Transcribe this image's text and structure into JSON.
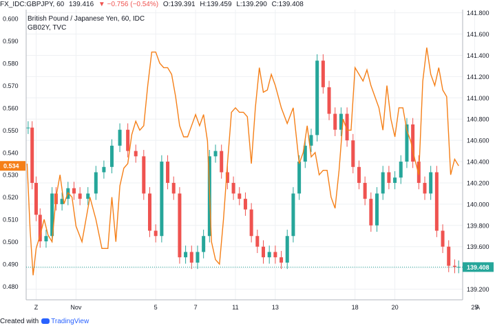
{
  "header": {
    "symbol": "FX_IDC:GBPJPY, 60",
    "last": "139.416",
    "change": "▼ −0.756 (−0.54%)",
    "open": "O:139.391",
    "high": "H:139.459",
    "low": "L:139.290",
    "close": "C:139.408"
  },
  "footer": {
    "created_with": "Created with",
    "brand": "TradingView"
  },
  "colors": {
    "up": "#26a69a",
    "down": "#ef5350",
    "yield_line": "#f57f17",
    "grid": "#eef0f3",
    "axis_text": "#131722",
    "price_badge": "#26a69a"
  },
  "chart_data": {
    "type": "candlestick",
    "title": "British Pound / Japanese Yen, 60, IDC",
    "subtitle": "GB02Y, TVC",
    "x_ticks": [
      "Z",
      "Nov",
      "5",
      "7",
      "11",
      "13",
      "18",
      "20",
      "25"
    ],
    "x_tick_days": [
      -2,
      0,
      4,
      6,
      8,
      10,
      14,
      16,
      20
    ],
    "x_range_days": [
      -2.5,
      19.4
    ],
    "corner_label": "A",
    "left_axis": {
      "ylim": [
        0.474,
        0.604
      ],
      "ticks": [
        "0.600",
        "0.590",
        "0.580",
        "0.570",
        "0.560",
        "0.550",
        "0.540",
        "0.530",
        "0.520",
        "0.510",
        "0.500",
        "0.490",
        "0.480"
      ],
      "current_value": "0.534"
    },
    "right_axis": {
      "ylim": [
        139.1,
        141.83
      ],
      "ticks": [
        "141.800",
        "141.600",
        "141.400",
        "141.200",
        "141.000",
        "140.800",
        "140.600",
        "140.400",
        "140.200",
        "140.000",
        "139.800",
        "139.600",
        "139.400",
        "139.200"
      ],
      "current_value": "139.408"
    },
    "series": [
      {
        "name": "GBPJPY",
        "kind": "candles",
        "axis": "right",
        "x": [
          -2.4,
          -2.2,
          -2.0,
          -1.8,
          -1.5,
          -1.2,
          -1.0,
          -0.7,
          -0.4,
          -0.1,
          0.2,
          0.6,
          1.0,
          1.4,
          1.8,
          2.2,
          2.6,
          3.0,
          3.4,
          3.7,
          4.0,
          4.3,
          4.6,
          4.9,
          5.2,
          5.5,
          5.8,
          6.1,
          6.4,
          6.7,
          7.0,
          7.3,
          7.6,
          7.9,
          8.2,
          8.5,
          8.8,
          9.1,
          9.4,
          9.7,
          10.0,
          10.3,
          10.6,
          10.9,
          11.2,
          11.5,
          11.8,
          12.1,
          12.4,
          12.7,
          13.0,
          13.3,
          13.6,
          13.9,
          14.2,
          14.5,
          14.8,
          15.1,
          15.4,
          15.7,
          16.0,
          16.3,
          16.6,
          16.9,
          17.2,
          17.5,
          17.8,
          18.1,
          18.4,
          18.7,
          19.0,
          19.2
        ],
        "close": [
          140.72,
          140.2,
          139.9,
          139.65,
          139.7,
          140.1,
          140.0,
          140.05,
          140.15,
          140.1,
          140.05,
          140.1,
          140.3,
          140.35,
          140.55,
          140.7,
          140.5,
          140.45,
          140.1,
          139.75,
          139.7,
          140.4,
          140.2,
          140.1,
          139.5,
          139.55,
          139.45,
          139.55,
          139.7,
          140.45,
          140.5,
          140.3,
          140.2,
          140.1,
          140.05,
          139.95,
          139.7,
          139.6,
          139.5,
          139.55,
          139.5,
          139.45,
          139.7,
          140.1,
          140.4,
          140.55,
          140.65,
          141.35,
          141.1,
          140.85,
          140.7,
          140.85,
          140.6,
          140.35,
          140.2,
          140.05,
          139.8,
          140.1,
          140.3,
          140.2,
          140.25,
          140.4,
          140.75,
          140.4,
          140.2,
          140.1,
          140.3,
          139.75,
          139.6,
          139.42,
          139.41,
          139.41
        ]
      },
      {
        "name": "GB02Y",
        "kind": "line",
        "axis": "left",
        "x": [
          -2.45,
          -2.3,
          -2.15,
          -2.0,
          -1.8,
          -1.6,
          -1.4,
          -1.2,
          -1.0,
          -0.8,
          -0.6,
          -0.4,
          -0.2,
          0.0,
          0.3,
          0.7,
          1.0,
          1.3,
          1.6,
          1.8,
          2.0,
          2.2,
          2.4,
          2.6,
          2.8,
          3.0,
          3.2,
          3.4,
          3.6,
          3.8,
          4.0,
          4.2,
          4.4,
          4.6,
          4.8,
          5.0,
          5.2,
          5.4,
          5.6,
          5.8,
          6.0,
          6.2,
          6.4,
          6.6,
          6.8,
          7.0,
          7.2,
          7.4,
          7.6,
          7.8,
          8.0,
          8.2,
          8.4,
          8.6,
          8.8,
          9.0,
          9.2,
          9.4,
          9.6,
          9.8,
          10.0,
          10.3,
          10.6,
          10.9,
          11.2,
          11.4,
          11.6,
          11.8,
          12.0,
          12.2,
          12.4,
          12.6,
          12.8,
          13.0,
          13.2,
          13.4,
          13.6,
          13.8,
          14.0,
          14.2,
          14.4,
          14.6,
          14.8,
          15.0,
          15.2,
          15.4,
          15.6,
          15.8,
          16.0,
          16.2,
          16.4,
          16.6,
          16.8,
          17.0,
          17.2,
          17.4,
          17.6,
          17.8,
          18.0,
          18.2,
          18.4,
          18.6,
          18.8,
          19.0,
          19.2
        ],
        "values": [
          0.535,
          0.505,
          0.485,
          0.497,
          0.503,
          0.51,
          0.503,
          0.5,
          0.52,
          0.53,
          0.517,
          0.522,
          0.52,
          0.507,
          0.5,
          0.52,
          0.51,
          0.497,
          0.497,
          0.52,
          0.5,
          0.525,
          0.533,
          0.535,
          0.548,
          0.554,
          0.55,
          0.552,
          0.57,
          0.585,
          0.585,
          0.58,
          0.578,
          0.578,
          0.575,
          0.565,
          0.552,
          0.547,
          0.547,
          0.552,
          0.557,
          0.552,
          0.557,
          0.545,
          0.5,
          0.492,
          0.49,
          0.51,
          0.535,
          0.558,
          0.56,
          0.558,
          0.558,
          0.556,
          0.535,
          0.56,
          0.578,
          0.567,
          0.568,
          0.575,
          0.57,
          0.56,
          0.553,
          0.56,
          0.535,
          0.54,
          0.552,
          0.538,
          0.54,
          0.53,
          0.532,
          0.532,
          0.52,
          0.515,
          0.532,
          0.555,
          0.55,
          0.55,
          0.578,
          0.575,
          0.572,
          0.577,
          0.57,
          0.565,
          0.56,
          0.55,
          0.57,
          0.555,
          0.547,
          0.56,
          0.56,
          0.55,
          0.545,
          0.537,
          0.53,
          0.572,
          0.587,
          0.575,
          0.57,
          0.578,
          0.568,
          0.565,
          0.53,
          0.537,
          0.534
        ]
      }
    ]
  }
}
